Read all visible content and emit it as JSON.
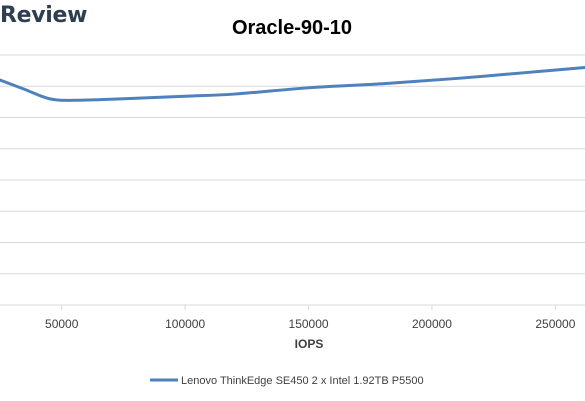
{
  "brand": {
    "text": "Review"
  },
  "chart_data": {
    "type": "line",
    "title": "Oracle-90-10",
    "xlabel": "IOPS",
    "ylabel": "",
    "xlim": [
      25000,
      262000
    ],
    "ylim": [
      0,
      8
    ],
    "grid": true,
    "y_gridline_count": 8,
    "legend_position": "bottom",
    "x_ticks": [
      {
        "value": 50000,
        "label": "50000"
      },
      {
        "value": 100000,
        "label": "100000"
      },
      {
        "value": 150000,
        "label": "150000"
      },
      {
        "value": 200000,
        "label": "200000"
      },
      {
        "value": 250000,
        "label": "250000"
      }
    ],
    "series": [
      {
        "name": "Lenovo ThinkEdge SE450 2 x Intel 1.92TB P5500",
        "color": "#4f81bd",
        "x": [
          25000,
          35000,
          45000,
          55000,
          75000,
          100000,
          120000,
          150000,
          180000,
          210000,
          240000,
          262000
        ],
        "y": [
          7.2,
          6.9,
          6.6,
          6.55,
          6.6,
          6.68,
          6.75,
          6.95,
          7.08,
          7.25,
          7.45,
          7.6
        ]
      }
    ]
  }
}
